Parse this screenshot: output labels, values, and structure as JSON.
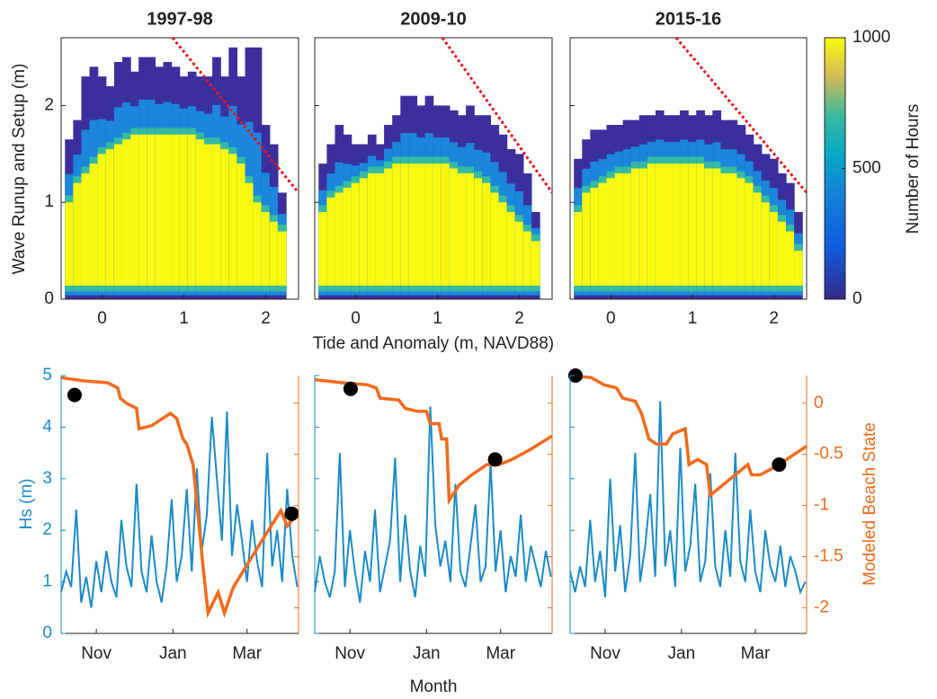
{
  "chart_data": [
    {
      "type": "heatmap",
      "xlabel": "Tide and Anomaly (m, NAVD88)",
      "ylabel": "Wave Runup and Setup (m)",
      "xlim": [
        -0.5,
        2.4
      ],
      "ylim": [
        0,
        2.7
      ],
      "xticks": [
        0,
        1,
        2
      ],
      "yticks": [
        0,
        1,
        2
      ],
      "clim": [
        0,
        1000
      ],
      "cticks": [
        0,
        500,
        1000
      ],
      "clabel": "Number of Hours",
      "threshold_color": "#e8141c",
      "x": [
        -0.4,
        -0.3,
        -0.2,
        -0.1,
        0,
        0.1,
        0.2,
        0.3,
        0.4,
        0.5,
        0.6,
        0.7,
        0.8,
        0.9,
        1,
        1.1,
        1.2,
        1.3,
        1.4,
        1.5,
        1.6,
        1.7,
        1.8,
        1.9,
        2,
        2.1,
        2.2,
        2.3
      ],
      "panels": [
        {
          "title": "1997-98",
          "max": [
            1.65,
            1.85,
            2.3,
            2.4,
            2.3,
            2.2,
            2.45,
            2.5,
            2.35,
            2.5,
            2.5,
            2.4,
            2.45,
            2.4,
            2.3,
            2.35,
            2.3,
            2.3,
            2.5,
            2.3,
            2.6,
            2.3,
            2.6,
            2.6,
            1.8,
            1.6,
            1.1,
            null
          ],
          "core": [
            1.0,
            1.2,
            1.3,
            1.4,
            1.5,
            1.55,
            1.6,
            1.65,
            1.7,
            1.7,
            1.7,
            1.7,
            1.7,
            1.7,
            1.7,
            1.7,
            1.65,
            1.6,
            1.6,
            1.55,
            1.5,
            1.4,
            1.2,
            1.0,
            0.9,
            0.8,
            0.7,
            null
          ],
          "threshold": {
            "x": [
              0.86,
              2.4
            ],
            "y": [
              2.7,
              1.1
            ]
          }
        },
        {
          "title": "2009-10",
          "max": [
            1.4,
            1.6,
            1.8,
            1.7,
            1.6,
            1.6,
            1.7,
            1.6,
            1.8,
            1.9,
            2.1,
            2.1,
            2.0,
            2.1,
            2.0,
            2.0,
            1.95,
            1.9,
            2.0,
            1.9,
            1.9,
            1.8,
            1.7,
            1.55,
            1.5,
            1.3,
            0.9,
            null
          ],
          "core": [
            0.9,
            1.05,
            1.1,
            1.15,
            1.2,
            1.25,
            1.3,
            1.3,
            1.35,
            1.4,
            1.4,
            1.4,
            1.4,
            1.4,
            1.4,
            1.4,
            1.35,
            1.3,
            1.3,
            1.25,
            1.2,
            1.1,
            1.0,
            0.9,
            0.8,
            0.7,
            0.6,
            null
          ],
          "threshold": {
            "x": [
              1.06,
              2.4
            ],
            "y": [
              2.7,
              1.1
            ]
          }
        },
        {
          "title": "2015-16",
          "max": [
            1.45,
            1.65,
            1.75,
            1.75,
            1.8,
            1.8,
            1.85,
            1.85,
            1.9,
            1.9,
            1.95,
            1.9,
            1.9,
            1.95,
            1.9,
            1.95,
            1.9,
            1.95,
            1.85,
            1.85,
            1.8,
            1.7,
            1.6,
            1.5,
            1.45,
            1.3,
            1.2,
            0.9
          ],
          "core": [
            0.9,
            1.1,
            1.15,
            1.2,
            1.25,
            1.3,
            1.3,
            1.35,
            1.35,
            1.4,
            1.4,
            1.4,
            1.4,
            1.4,
            1.4,
            1.4,
            1.35,
            1.35,
            1.3,
            1.3,
            1.25,
            1.2,
            1.1,
            1.0,
            0.9,
            0.8,
            0.7,
            0.5
          ],
          "threshold": {
            "x": [
              0.8,
              2.4
            ],
            "y": [
              2.7,
              1.1
            ]
          }
        }
      ]
    },
    {
      "type": "line",
      "xlabel": "Month",
      "ylabel": "Hs (m)",
      "y2label": "Modeled Beach State",
      "xlim": [
        3,
        192
      ],
      "xticks": [
        {
          "value": 31,
          "label": "Nov"
        },
        {
          "value": 92,
          "label": "Jan"
        },
        {
          "value": 151,
          "label": "Mar"
        }
      ],
      "ylim": [
        0,
        5
      ],
      "yticks": [
        0,
        1,
        2,
        3,
        4,
        5
      ],
      "y2lim": [
        -2.25,
        0.27
      ],
      "y2ticks": [
        0,
        -0.5,
        -1,
        -1.5,
        -2
      ],
      "hs_color": "#1a8bc9",
      "state_color": "#f26a1b",
      "dot_color": "#000000",
      "hs_x": [
        3,
        7,
        11,
        15,
        19,
        23,
        27,
        31,
        35,
        39,
        43,
        47,
        51,
        55,
        59,
        63,
        67,
        71,
        75,
        79,
        83,
        87,
        91,
        95,
        99,
        103,
        107,
        111,
        115,
        119,
        123,
        127,
        131,
        135,
        139,
        143,
        147,
        151,
        155,
        159,
        163,
        167,
        171,
        175,
        179,
        183,
        187,
        191
      ],
      "panels": [
        {
          "hs": [
            0.8,
            1.2,
            0.9,
            2.4,
            0.6,
            1.1,
            0.5,
            1.4,
            0.8,
            1.6,
            1.0,
            0.7,
            2.2,
            1.3,
            0.9,
            2.9,
            1.2,
            0.8,
            1.9,
            1.0,
            0.6,
            1.3,
            2.6,
            1.0,
            1.5,
            2.8,
            1.2,
            3.2,
            1.6,
            2.3,
            4.2,
            3.0,
            1.8,
            4.3,
            1.5,
            2.5,
            1.8,
            1.0,
            2.2,
            1.4,
            0.9,
            3.5,
            1.3,
            2.0,
            1.0,
            2.8,
            1.5,
            0.9
          ],
          "state_x": [
            3,
            20,
            40,
            48,
            50,
            55,
            63,
            65,
            75,
            90,
            95,
            100,
            103,
            108,
            112,
            116,
            120,
            124,
            128,
            133,
            140,
            150,
            165,
            178,
            183,
            190
          ],
          "state": [
            0.25,
            0.22,
            0.2,
            0.15,
            0.05,
            0.0,
            -0.05,
            -0.25,
            -0.22,
            -0.1,
            -0.15,
            -0.35,
            -0.4,
            -0.6,
            -1.1,
            -1.6,
            -2.05,
            -1.95,
            -1.85,
            -2.05,
            -1.8,
            -1.6,
            -1.3,
            -1.05,
            -1.2,
            -1.1
          ],
          "dots_x": [
            13.7,
            186.6
          ],
          "dots": [
            0.08,
            -1.08
          ]
        },
        {
          "hs": [
            0.8,
            1.5,
            1.0,
            0.7,
            1.2,
            3.5,
            0.9,
            2.0,
            1.2,
            0.6,
            1.6,
            1.0,
            2.4,
            0.8,
            1.3,
            1.8,
            3.4,
            1.0,
            2.3,
            1.2,
            0.7,
            1.7,
            1.1,
            4.4,
            2.1,
            1.3,
            1.8,
            1.0,
            2.9,
            1.2,
            0.9,
            1.7,
            2.5,
            1.0,
            1.3,
            3.3,
            1.2,
            2.0,
            0.8,
            1.5,
            1.1,
            2.3,
            1.0,
            1.7,
            1.3,
            0.9,
            1.6,
            1.1
          ],
          "state_x": [
            3,
            25,
            45,
            52,
            55,
            70,
            75,
            85,
            92,
            95,
            102,
            104,
            108,
            110,
            118,
            128,
            140,
            150,
            160,
            175,
            192
          ],
          "state": [
            0.23,
            0.2,
            0.18,
            0.15,
            0.05,
            0.03,
            -0.05,
            -0.08,
            -0.08,
            -0.2,
            -0.2,
            -0.35,
            -0.35,
            -0.95,
            -0.8,
            -0.7,
            -0.6,
            -0.6,
            -0.55,
            -0.45,
            -0.32
          ],
          "dots_x": [
            31.6,
            146.6
          ],
          "dots": [
            0.14,
            -0.55
          ]
        },
        {
          "hs": [
            1.2,
            0.8,
            1.3,
            0.9,
            2.2,
            1.0,
            1.6,
            0.7,
            3.0,
            1.2,
            2.1,
            0.8,
            1.5,
            3.5,
            1.0,
            1.7,
            2.7,
            1.1,
            4.5,
            1.3,
            2.0,
            0.9,
            3.6,
            1.2,
            1.7,
            2.9,
            1.0,
            1.4,
            3.1,
            1.3,
            0.9,
            2.0,
            1.1,
            3.5,
            1.4,
            1.0,
            2.4,
            1.2,
            0.8,
            2.0,
            1.3,
            1.0,
            1.7,
            0.9,
            1.5,
            1.2,
            0.8,
            1.0
          ],
          "state_x": [
            3,
            20,
            30,
            40,
            45,
            55,
            60,
            66,
            72,
            80,
            85,
            95,
            98,
            105,
            112,
            115,
            125,
            135,
            145,
            148,
            155,
            170,
            182,
            192
          ],
          "state": [
            0.27,
            0.25,
            0.18,
            0.15,
            0.05,
            0.02,
            -0.1,
            -0.35,
            -0.4,
            -0.4,
            -0.3,
            -0.25,
            -0.6,
            -0.55,
            -0.6,
            -0.9,
            -0.8,
            -0.7,
            -0.6,
            -0.7,
            -0.7,
            -0.6,
            -0.5,
            -0.42
          ],
          "dots_x": [
            7.3,
            170
          ],
          "dots": [
            0.27,
            -0.6
          ]
        }
      ]
    }
  ]
}
